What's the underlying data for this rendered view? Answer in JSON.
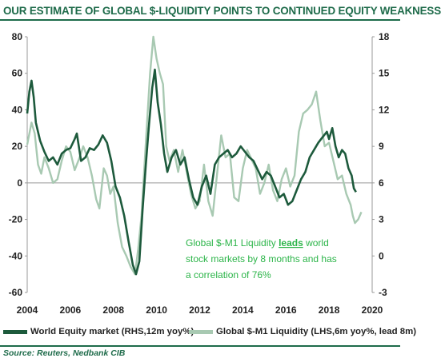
{
  "title": "OUR ESTIMATE OF GLOBAL $-LIQUIDITY POINTS TO CONTINUED EQUITY WEAKNESS",
  "source": "Source: Reuters, Nedbank CIB",
  "colors": {
    "title": "#1e6b4a",
    "equity_series": "#1d5a3c",
    "liquidity_series": "#a8c9b2",
    "annotation": "#2db54a",
    "axis": "#999999"
  },
  "annotation": {
    "line1_pre": "Global $-M1 Liquidity ",
    "line1_underlined": "leads",
    "line1_post": " world",
    "line2": "stock markets by 8 months and has",
    "line3": "a correlation of 76%"
  },
  "chart_data": {
    "type": "line",
    "title": "OUR ESTIMATE OF GLOBAL $-LIQUIDITY POINTS TO CONTINUED EQUITY WEAKNESS",
    "xlim": [
      2004,
      2020
    ],
    "x_ticks": [
      "2004",
      "2006",
      "2008",
      "2010",
      "2012",
      "2014",
      "2016",
      "2018",
      "2020"
    ],
    "y_left": {
      "lim": [
        -60,
        80
      ],
      "ticks": [
        "80",
        "60",
        "40",
        "20",
        "0",
        "-20",
        "-40",
        "-60"
      ]
    },
    "y_right": {
      "lim": [
        -3,
        18
      ],
      "ticks": [
        "18",
        "15",
        "12",
        "9",
        "6",
        "3",
        "0",
        "-3"
      ]
    },
    "grid": false,
    "legend_position": "bottom",
    "series": [
      {
        "name": "World Equity market (RHS,12m yoy%)",
        "axis": "left",
        "points": [
          [
            2004.0,
            38
          ],
          [
            2004.1,
            50
          ],
          [
            2004.2,
            56
          ],
          [
            2004.3,
            47
          ],
          [
            2004.4,
            33
          ],
          [
            2004.5,
            28
          ],
          [
            2004.6,
            23
          ],
          [
            2004.8,
            17
          ],
          [
            2005.0,
            12
          ],
          [
            2005.2,
            14
          ],
          [
            2005.4,
            10
          ],
          [
            2005.6,
            16
          ],
          [
            2005.8,
            18
          ],
          [
            2006.0,
            19
          ],
          [
            2006.2,
            24
          ],
          [
            2006.3,
            27
          ],
          [
            2006.5,
            12
          ],
          [
            2006.7,
            14
          ],
          [
            2006.9,
            19
          ],
          [
            2007.1,
            18
          ],
          [
            2007.3,
            21
          ],
          [
            2007.5,
            26
          ],
          [
            2007.7,
            22
          ],
          [
            2007.9,
            12
          ],
          [
            2008.1,
            -2
          ],
          [
            2008.3,
            -8
          ],
          [
            2008.5,
            -18
          ],
          [
            2008.7,
            -32
          ],
          [
            2008.9,
            -45
          ],
          [
            2009.05,
            -50
          ],
          [
            2009.2,
            -43
          ],
          [
            2009.35,
            -15
          ],
          [
            2009.5,
            10
          ],
          [
            2009.65,
            32
          ],
          [
            2009.8,
            52
          ],
          [
            2009.92,
            62
          ],
          [
            2010.05,
            44
          ],
          [
            2010.2,
            32
          ],
          [
            2010.35,
            16
          ],
          [
            2010.5,
            6
          ],
          [
            2010.7,
            14
          ],
          [
            2010.9,
            18
          ],
          [
            2011.1,
            10
          ],
          [
            2011.3,
            14
          ],
          [
            2011.5,
            2
          ],
          [
            2011.7,
            -8
          ],
          [
            2011.9,
            -12
          ],
          [
            2012.1,
            -2
          ],
          [
            2012.3,
            4
          ],
          [
            2012.5,
            -6
          ],
          [
            2012.7,
            10
          ],
          [
            2012.9,
            14
          ],
          [
            2013.1,
            16
          ],
          [
            2013.3,
            18
          ],
          [
            2013.5,
            14
          ],
          [
            2013.7,
            16
          ],
          [
            2013.9,
            20
          ],
          [
            2014.1,
            17
          ],
          [
            2014.3,
            14
          ],
          [
            2014.5,
            12
          ],
          [
            2014.7,
            7
          ],
          [
            2014.9,
            2
          ],
          [
            2015.1,
            6
          ],
          [
            2015.3,
            4
          ],
          [
            2015.5,
            -2
          ],
          [
            2015.7,
            -8
          ],
          [
            2015.9,
            -6
          ],
          [
            2016.1,
            -12
          ],
          [
            2016.3,
            -10
          ],
          [
            2016.5,
            -4
          ],
          [
            2016.7,
            2
          ],
          [
            2016.9,
            6
          ],
          [
            2017.1,
            14
          ],
          [
            2017.3,
            18
          ],
          [
            2017.5,
            22
          ],
          [
            2017.7,
            25
          ],
          [
            2017.9,
            28
          ],
          [
            2018.0,
            24
          ],
          [
            2018.15,
            30
          ],
          [
            2018.3,
            20
          ],
          [
            2018.45,
            14
          ],
          [
            2018.6,
            18
          ],
          [
            2018.75,
            16
          ],
          [
            2018.9,
            8
          ],
          [
            2019.05,
            4
          ],
          [
            2019.15,
            -3
          ],
          [
            2019.25,
            -5
          ]
        ]
      },
      {
        "name": "Global $-M1 Liquidity (LHS,6m yoy%, lead 8m)",
        "axis": "left",
        "points": [
          [
            2004.0,
            21
          ],
          [
            2004.2,
            33
          ],
          [
            2004.35,
            27
          ],
          [
            2004.5,
            10
          ],
          [
            2004.65,
            5
          ],
          [
            2004.8,
            14
          ],
          [
            2005.0,
            8
          ],
          [
            2005.2,
            0
          ],
          [
            2005.4,
            2
          ],
          [
            2005.6,
            12
          ],
          [
            2005.8,
            20
          ],
          [
            2006.0,
            17
          ],
          [
            2006.2,
            7
          ],
          [
            2006.4,
            13
          ],
          [
            2006.6,
            20
          ],
          [
            2006.8,
            14
          ],
          [
            2007.0,
            4
          ],
          [
            2007.2,
            -9
          ],
          [
            2007.35,
            -14
          ],
          [
            2007.55,
            8
          ],
          [
            2007.7,
            4
          ],
          [
            2007.85,
            -6
          ],
          [
            2008.0,
            -2
          ],
          [
            2008.2,
            -22
          ],
          [
            2008.4,
            -35
          ],
          [
            2008.6,
            -40
          ],
          [
            2008.8,
            -46
          ],
          [
            2009.0,
            -50
          ],
          [
            2009.15,
            -36
          ],
          [
            2009.3,
            -18
          ],
          [
            2009.5,
            22
          ],
          [
            2009.7,
            60
          ],
          [
            2009.85,
            80
          ],
          [
            2010.0,
            68
          ],
          [
            2010.15,
            60
          ],
          [
            2010.3,
            54
          ],
          [
            2010.45,
            20
          ],
          [
            2010.6,
            12
          ],
          [
            2010.8,
            18
          ],
          [
            2011.0,
            6
          ],
          [
            2011.2,
            18
          ],
          [
            2011.4,
            6
          ],
          [
            2011.6,
            -6
          ],
          [
            2011.8,
            -14
          ],
          [
            2012.0,
            -10
          ],
          [
            2012.2,
            10
          ],
          [
            2012.4,
            -10
          ],
          [
            2012.6,
            -18
          ],
          [
            2012.8,
            4
          ],
          [
            2013.0,
            26
          ],
          [
            2013.2,
            14
          ],
          [
            2013.4,
            16
          ],
          [
            2013.6,
            -8
          ],
          [
            2013.8,
            -10
          ],
          [
            2014.0,
            8
          ],
          [
            2014.2,
            18
          ],
          [
            2014.4,
            13
          ],
          [
            2014.6,
            8
          ],
          [
            2014.8,
            -6
          ],
          [
            2015.0,
            0
          ],
          [
            2015.2,
            10
          ],
          [
            2015.4,
            -4
          ],
          [
            2015.6,
            -10
          ],
          [
            2015.8,
            2
          ],
          [
            2016.0,
            8
          ],
          [
            2016.2,
            -2
          ],
          [
            2016.4,
            4
          ],
          [
            2016.6,
            28
          ],
          [
            2016.8,
            38
          ],
          [
            2017.0,
            40
          ],
          [
            2017.2,
            43
          ],
          [
            2017.4,
            50
          ],
          [
            2017.6,
            34
          ],
          [
            2017.8,
            20
          ],
          [
            2018.0,
            22
          ],
          [
            2018.2,
            12
          ],
          [
            2018.4,
            2
          ],
          [
            2018.6,
            4
          ],
          [
            2018.8,
            -6
          ],
          [
            2019.0,
            -12
          ],
          [
            2019.1,
            -18
          ],
          [
            2019.2,
            -22
          ],
          [
            2019.35,
            -20
          ],
          [
            2019.5,
            -16
          ]
        ]
      }
    ]
  }
}
